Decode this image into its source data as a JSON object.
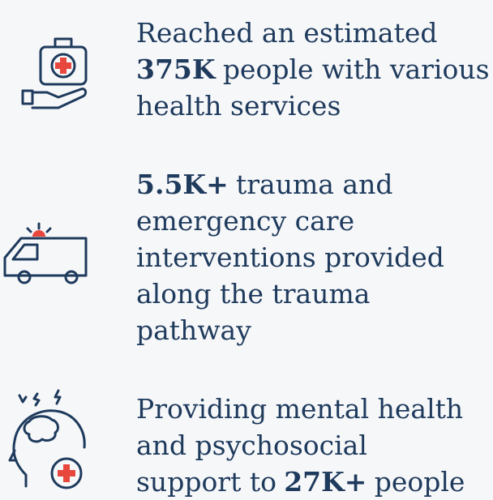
{
  "items": [
    {
      "lines": [
        [
          {
            "text": "Reached an estimated",
            "bold": false
          }
        ],
        [
          {
            "text": "375K",
            "bold": true
          },
          {
            "text": "people with various",
            "bold": false
          }
        ],
        [
          {
            "text": "health services",
            "bold": false
          }
        ]
      ]
    },
    {
      "lines": [
        [
          {
            "text": "5.5K+",
            "bold": true
          },
          {
            "text": "trauma and",
            "bold": false
          }
        ],
        [
          {
            "text": "emergency care",
            "bold": false
          }
        ],
        [
          {
            "text": "interventions provided",
            "bold": false
          }
        ],
        [
          {
            "text": "along the trauma",
            "bold": false
          }
        ],
        [
          {
            "text": "pathway",
            "bold": false
          }
        ]
      ]
    },
    {
      "lines": [
        [
          {
            "text": "Providing mental health",
            "bold": false
          }
        ],
        [
          {
            "text": "and psychosocial",
            "bold": false
          }
        ],
        [
          {
            "text": "support to",
            "bold": false
          },
          {
            "text": "27K+",
            "bold": true
          },
          {
            "text": "people",
            "bold": false
          }
        ]
      ]
    }
  ]
}
